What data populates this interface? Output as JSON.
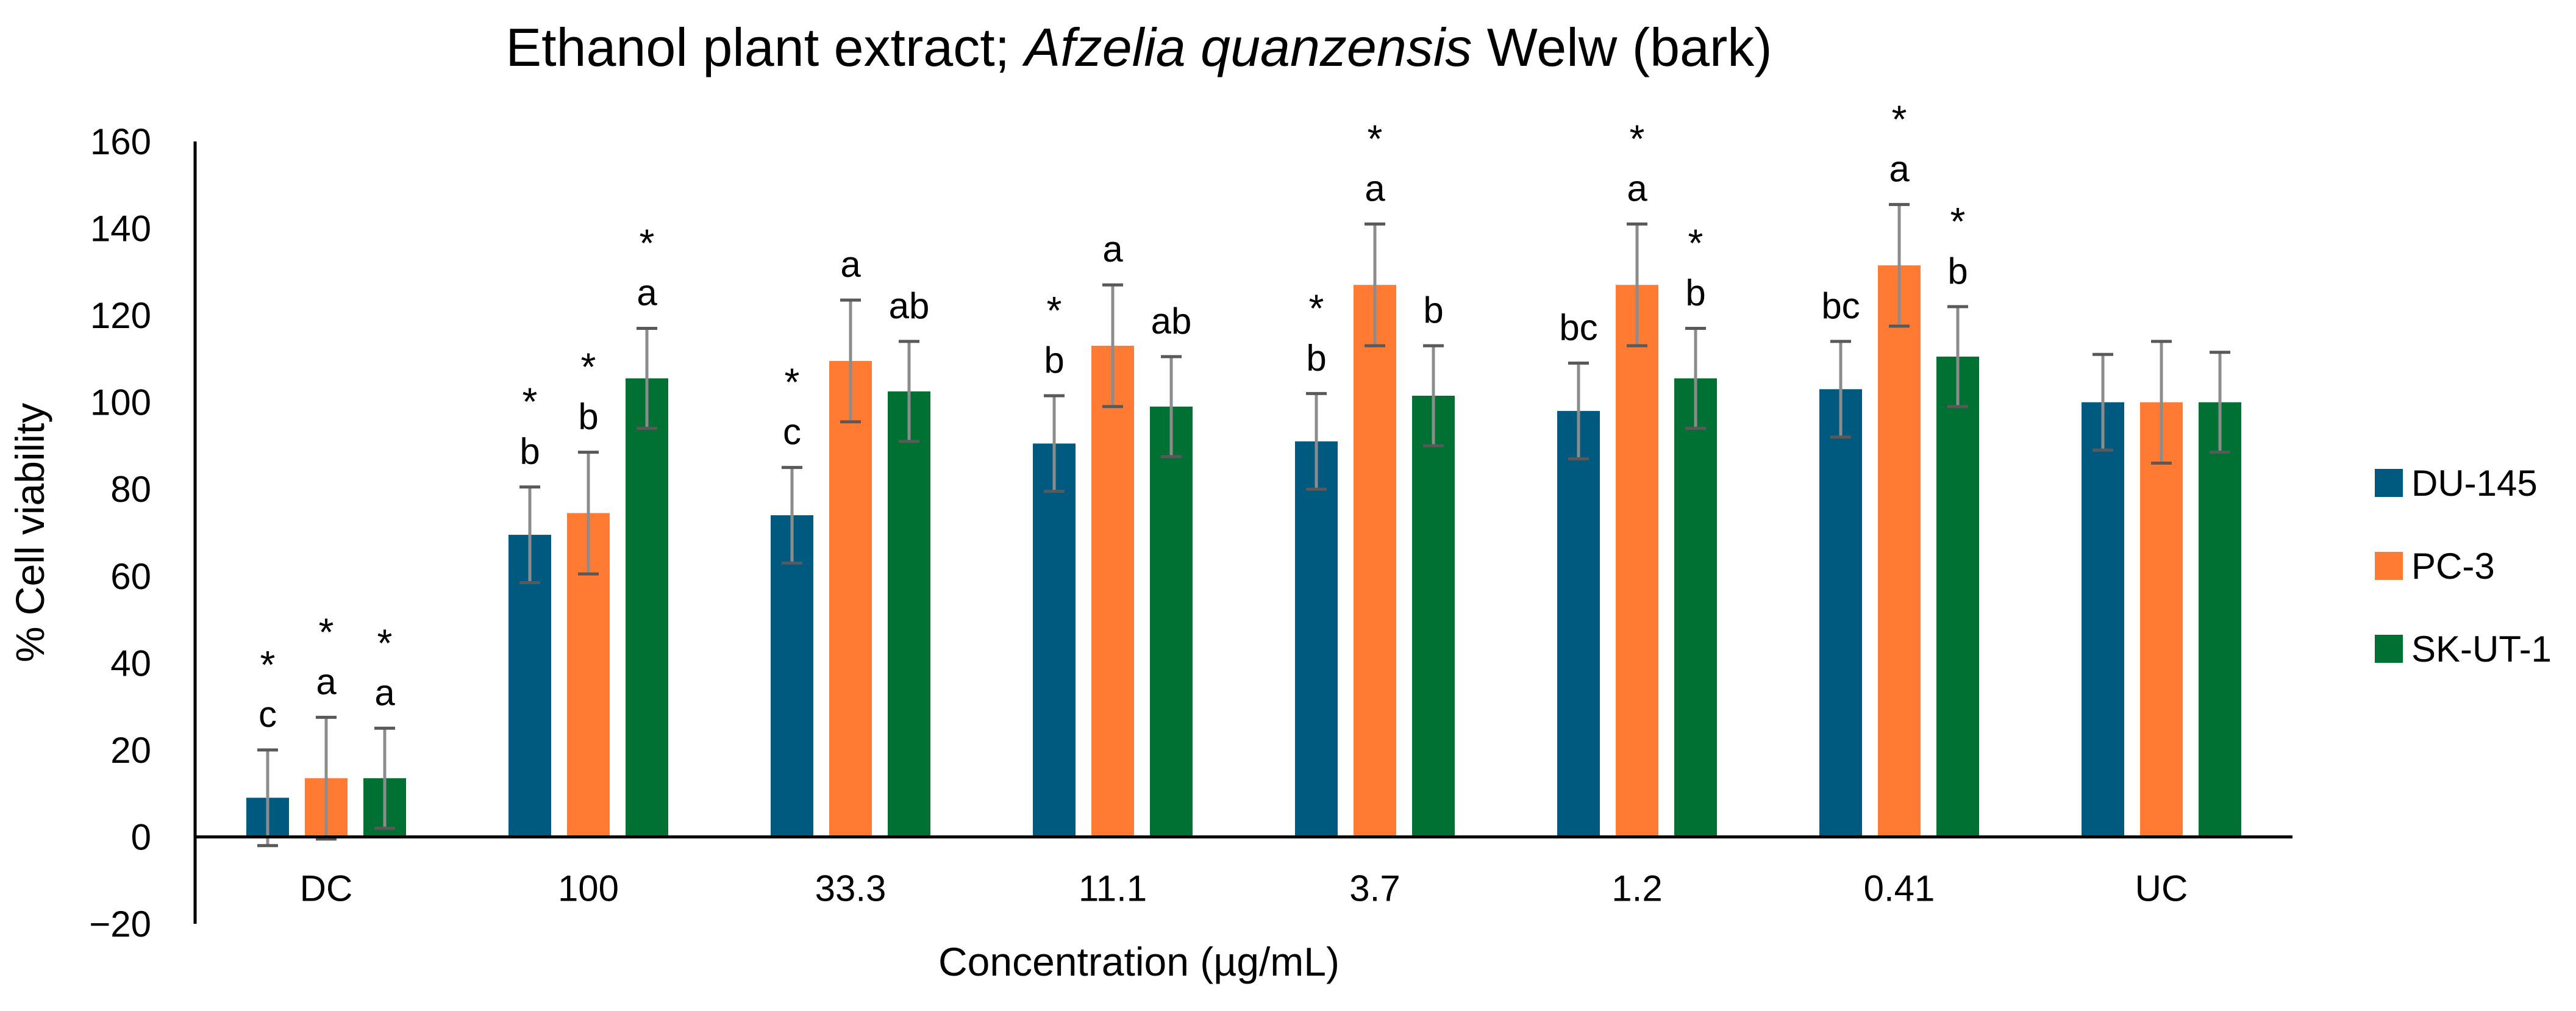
{
  "chart_data": {
    "type": "bar",
    "title": {
      "prefix": "Ethanol plant extract; ",
      "species": "Afzelia quanzensis",
      "suffix": " Welw (bark)"
    },
    "xlabel": "Concentration (µg/mL)",
    "ylabel": "% Cell viability",
    "ylim": [
      -20,
      160
    ],
    "yticks": [
      -20,
      0,
      20,
      40,
      60,
      80,
      100,
      120,
      140,
      160
    ],
    "ytick_labels": [
      "−20",
      "0",
      "20",
      "40",
      "60",
      "80",
      "100",
      "120",
      "140",
      "160"
    ],
    "categories": [
      "DC",
      "100",
      "33.3",
      "11.1",
      "3.7",
      "1.2",
      "0.41",
      "UC"
    ],
    "legend_position": "right",
    "series": [
      {
        "name": "DU-145",
        "color": "#005a80",
        "values": [
          9,
          69.5,
          74,
          90.5,
          91,
          98,
          103,
          100
        ],
        "errors": [
          11,
          11,
          11,
          11,
          11,
          11,
          11,
          11
        ],
        "letters": [
          "c",
          "b",
          "c",
          "b",
          "b",
          "bc",
          "bc",
          ""
        ],
        "stars": [
          true,
          true,
          true,
          true,
          true,
          false,
          false,
          false
        ]
      },
      {
        "name": "PC-3",
        "color": "#ff7a33",
        "values": [
          13.5,
          74.5,
          109.5,
          113,
          127,
          127,
          131.5,
          100
        ],
        "errors": [
          14,
          14,
          14,
          14,
          14,
          14,
          14,
          14
        ],
        "letters": [
          "a",
          "b",
          "a",
          "a",
          "a",
          "a",
          "a",
          ""
        ],
        "stars": [
          true,
          true,
          false,
          false,
          true,
          true,
          true,
          false
        ]
      },
      {
        "name": "SK-UT-1",
        "color": "#007033",
        "values": [
          13.5,
          105.5,
          102.5,
          99,
          101.5,
          105.5,
          110.5,
          100
        ],
        "errors": [
          11.5,
          11.5,
          11.5,
          11.5,
          11.5,
          11.5,
          11.5,
          11.5
        ],
        "letters": [
          "a",
          "a",
          "ab",
          "ab",
          "b",
          "b",
          "b",
          ""
        ],
        "stars": [
          true,
          true,
          false,
          false,
          false,
          true,
          true,
          false
        ]
      }
    ]
  }
}
